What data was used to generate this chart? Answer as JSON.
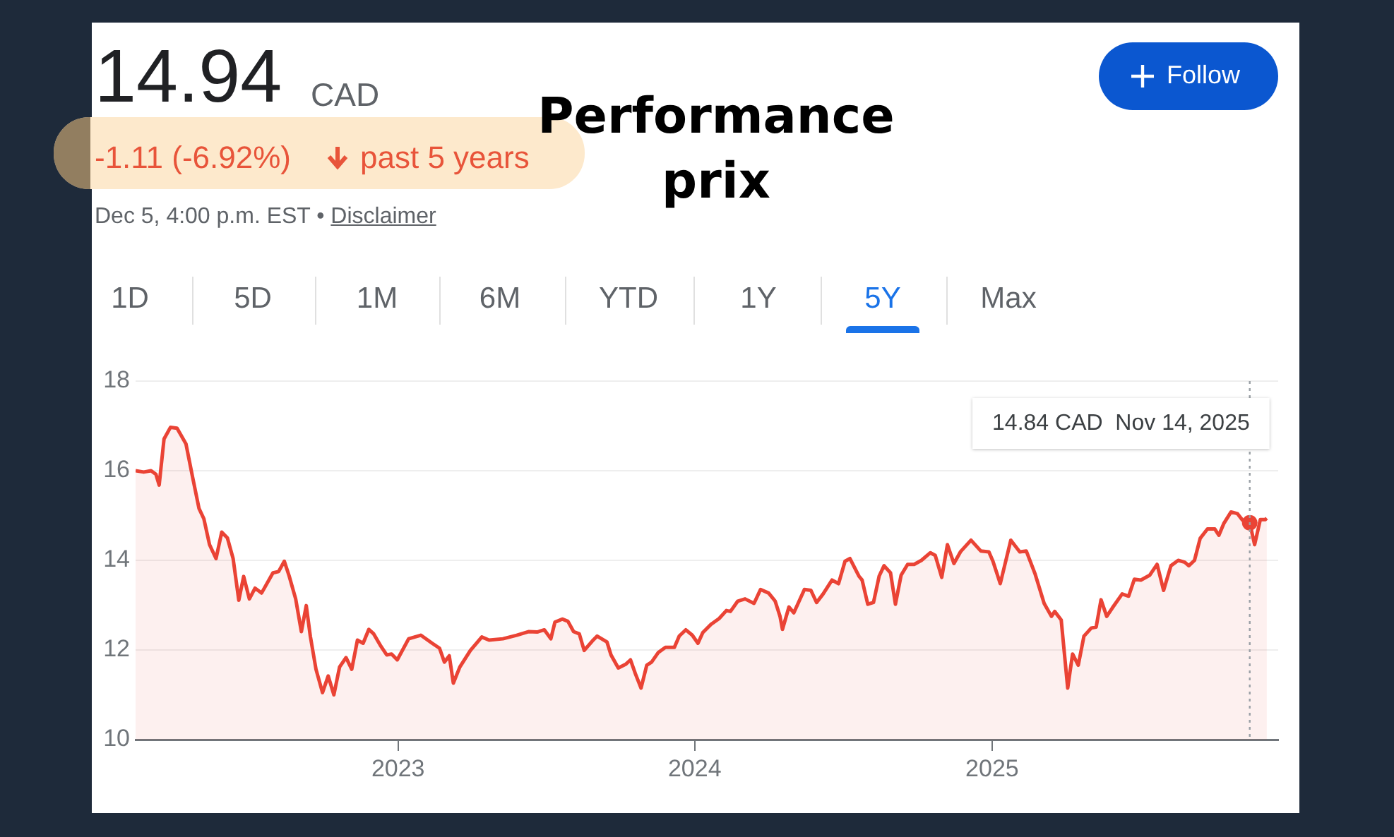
{
  "chart_data": {
    "type": "area",
    "title": "Performance prix",
    "annotations": [
      "14.94",
      "CAD",
      "-1.11 (-6.92%)",
      "past 5 years",
      "Dec 5, 4:00 p.m. EST •",
      "Disclaimer",
      "Follow",
      "1D",
      "5D",
      "1M",
      "6M",
      "YTD",
      "1Y",
      "5Y",
      "Max",
      "14.84 CAD  Nov 14, 2025"
    ],
    "x": [
      "2022-02-12",
      "2022-02-22",
      "2022-03-03",
      "2022-03-09",
      "2022-03-13",
      "2022-03-19",
      "2022-03-27",
      "2022-04-04",
      "2022-04-15",
      "2022-04-23",
      "2022-05-01",
      "2022-05-07",
      "2022-05-14",
      "2022-05-22",
      "2022-05-29",
      "2022-06-05",
      "2022-06-12",
      "2022-06-19",
      "2022-06-25",
      "2022-07-02",
      "2022-07-09",
      "2022-07-17",
      "2022-07-31",
      "2022-08-07",
      "2022-08-14",
      "2022-08-20",
      "2022-08-28",
      "2022-09-04",
      "2022-09-10",
      "2022-09-15",
      "2022-09-22",
      "2022-09-30",
      "2022-10-07",
      "2022-10-14",
      "2022-10-21",
      "2022-10-29",
      "2022-11-05",
      "2022-11-12",
      "2022-11-19",
      "2022-11-26",
      "2022-12-02",
      "2022-12-11",
      "2022-12-18",
      "2022-12-24",
      "2022-12-31",
      "2023-01-14",
      "2023-01-29",
      "2023-02-12",
      "2023-02-21",
      "2023-02-27",
      "2023-03-05",
      "2023-03-10",
      "2023-03-18",
      "2023-03-31",
      "2023-04-14",
      "2023-04-23",
      "2023-05-10",
      "2023-05-27",
      "2023-06-11",
      "2023-06-21",
      "2023-06-30",
      "2023-07-08",
      "2023-07-13",
      "2023-07-22",
      "2023-07-29",
      "2023-08-05",
      "2023-08-12",
      "2023-08-18",
      "2023-08-28",
      "2023-09-03",
      "2023-09-15",
      "2023-09-20",
      "2023-09-29",
      "2023-10-08",
      "2023-10-14",
      "2023-10-20",
      "2023-10-27",
      "2023-11-03",
      "2023-11-09",
      "2023-11-17",
      "2023-11-26",
      "2023-12-07",
      "2023-12-13",
      "2023-12-21",
      "2023-12-29",
      "2024-01-05",
      "2024-01-11",
      "2024-01-21",
      "2024-01-31",
      "2024-02-09",
      "2024-02-14",
      "2024-02-23",
      "2024-03-03",
      "2024-03-14",
      "2024-03-22",
      "2024-04-01",
      "2024-04-09",
      "2024-04-15",
      "2024-04-18",
      "2024-04-26",
      "2024-05-02",
      "2024-05-15",
      "2024-05-23",
      "2024-05-30",
      "2024-06-07",
      "2024-06-18",
      "2024-06-26",
      "2024-07-04",
      "2024-07-10",
      "2024-07-21",
      "2024-07-25",
      "2024-08-01",
      "2024-08-08",
      "2024-08-15",
      "2024-08-21",
      "2024-08-29",
      "2024-09-04",
      "2024-09-11",
      "2024-09-19",
      "2024-09-27",
      "2024-10-06",
      "2024-10-17",
      "2024-10-23",
      "2024-10-31",
      "2024-11-07",
      "2024-11-15",
      "2024-11-23",
      "2024-12-06",
      "2024-12-18",
      "2024-12-28",
      "2025-01-02",
      "2025-01-11",
      "2025-01-24",
      "2025-02-04",
      "2025-02-12",
      "2025-02-23",
      "2025-03-06",
      "2025-03-15",
      "2025-03-19",
      "2025-03-27",
      "2025-04-04",
      "2025-04-10",
      "2025-04-17",
      "2025-04-24",
      "2025-05-03",
      "2025-05-09",
      "2025-05-15",
      "2025-05-22",
      "2025-05-29",
      "2025-06-10",
      "2025-06-18",
      "2025-06-25",
      "2025-07-03",
      "2025-07-14",
      "2025-07-23",
      "2025-07-31",
      "2025-08-09",
      "2025-08-18",
      "2025-08-26",
      "2025-08-31",
      "2025-09-07",
      "2025-09-14",
      "2025-09-23",
      "2025-10-02",
      "2025-10-07",
      "2025-10-13",
      "2025-10-22",
      "2025-10-30",
      "2025-11-05",
      "2025-11-14",
      "2025-11-20",
      "2025-11-27",
      "2025-12-03",
      "2025-12-05"
    ],
    "series": [
      {
        "color": "#ea4335",
        "values": [
          16.0,
          15.97,
          16.0,
          15.92,
          15.68,
          16.71,
          16.97,
          16.95,
          16.6,
          15.87,
          15.16,
          14.93,
          14.35,
          14.04,
          14.63,
          14.5,
          14.04,
          13.11,
          13.64,
          13.14,
          13.38,
          13.27,
          13.72,
          13.75,
          13.98,
          13.65,
          13.14,
          12.41,
          12.99,
          12.31,
          11.57,
          11.05,
          11.42,
          11.0,
          11.62,
          11.83,
          11.57,
          12.22,
          12.15,
          12.46,
          12.36,
          12.08,
          11.89,
          11.91,
          11.78,
          12.25,
          12.33,
          12.15,
          12.04,
          11.73,
          11.87,
          11.26,
          11.62,
          11.99,
          12.29,
          12.22,
          12.25,
          12.33,
          12.41,
          12.4,
          12.45,
          12.25,
          12.62,
          12.69,
          12.64,
          12.41,
          12.36,
          11.99,
          12.2,
          12.31,
          12.18,
          11.89,
          11.6,
          11.68,
          11.78,
          11.47,
          11.15,
          11.66,
          11.73,
          11.94,
          12.06,
          12.06,
          12.31,
          12.45,
          12.33,
          12.15,
          12.39,
          12.57,
          12.7,
          12.88,
          12.86,
          13.09,
          13.14,
          13.04,
          13.35,
          13.27,
          13.09,
          12.75,
          12.46,
          12.96,
          12.83,
          13.35,
          13.33,
          13.06,
          13.25,
          13.56,
          13.48,
          13.98,
          14.04,
          13.65,
          13.56,
          13.02,
          13.06,
          13.65,
          13.88,
          13.72,
          13.02,
          13.67,
          13.91,
          13.91,
          14.0,
          14.17,
          14.11,
          13.62,
          14.35,
          13.93,
          14.19,
          14.45,
          14.21,
          14.19,
          13.98,
          13.48,
          14.45,
          14.19,
          14.21,
          13.69,
          13.04,
          12.75,
          12.86,
          12.67,
          11.15,
          11.91,
          11.66,
          12.31,
          12.49,
          12.51,
          13.12,
          12.75,
          12.94,
          13.25,
          13.2,
          13.58,
          13.56,
          13.67,
          13.91,
          13.33,
          13.88,
          14.0,
          13.96,
          13.88,
          14.0,
          14.49,
          14.7,
          14.7,
          14.56,
          14.82,
          15.08,
          15.04,
          14.9,
          14.84,
          14.35,
          14.91,
          14.91,
          14.94
        ]
      }
    ],
    "xlim": [
      "2022-02-12",
      "2025-12-19"
    ],
    "xticks": [
      {
        "value": "2023-01-01",
        "label": "2023"
      },
      {
        "value": "2024-01-01",
        "label": "2024"
      },
      {
        "value": "2025-01-01",
        "label": "2025"
      }
    ],
    "ylim": [
      10,
      18
    ],
    "yticks": [
      10,
      12,
      14,
      16,
      18
    ],
    "grid": "y",
    "legend": false,
    "marker": "none",
    "line_style": "solid",
    "ref_lines": [
      {
        "axis": "x",
        "value": "2025-11-14",
        "color": "#9aa0a6",
        "line_style": "dotted"
      }
    ]
  }
}
